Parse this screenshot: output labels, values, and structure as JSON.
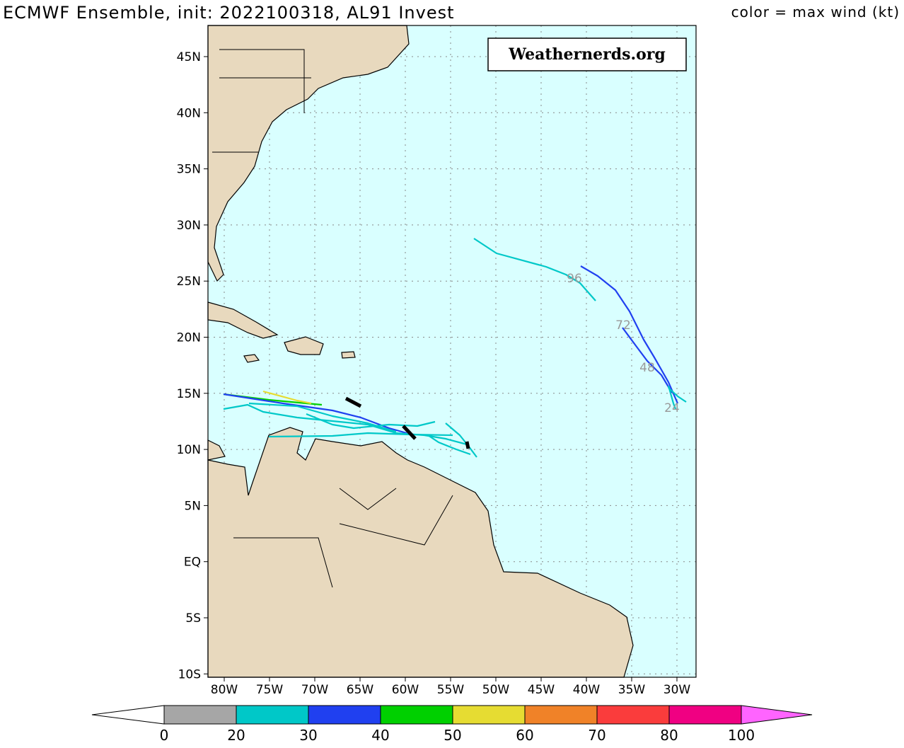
{
  "header": {
    "title": "ECMWF Ensemble, init: 2022100318, AL91 Invest",
    "legend_title": "color = max wind (kt)"
  },
  "watermark": "Weathernerds.org",
  "map": {
    "lat_labels": [
      "45N",
      "40N",
      "35N",
      "30N",
      "25N",
      "20N",
      "15N",
      "10N",
      "5N",
      "EQ",
      "5S",
      "10S"
    ],
    "lon_labels": [
      "80W",
      "75W",
      "70W",
      "65W",
      "60W",
      "55W",
      "50W",
      "45W",
      "40W",
      "35W",
      "30W"
    ],
    "hour_labels": [
      "96",
      "72",
      "48",
      "24"
    ]
  },
  "colorbar": {
    "ticks": [
      0,
      20,
      30,
      40,
      50,
      60,
      70,
      80,
      100
    ],
    "colors": [
      "#a6a6a6",
      "#00c8c8",
      "#2040f0",
      "#00d000",
      "#e6dc32",
      "#f08228",
      "#fa3c3c",
      "#f00082",
      "#ff64ff"
    ],
    "under_color": "#ffffff"
  }
}
